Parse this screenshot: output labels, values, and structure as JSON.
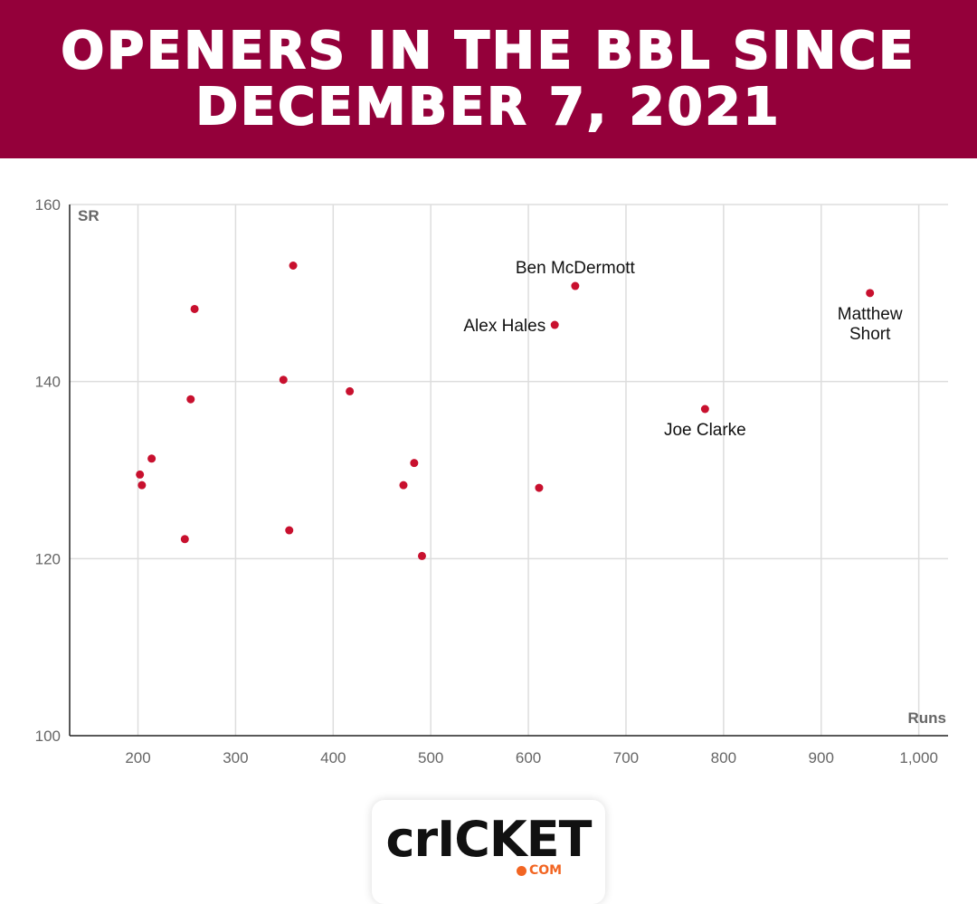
{
  "header": {
    "title_line1": "OPENERS IN THE BBL SINCE",
    "title_line2": "DECEMBER 7, 2021"
  },
  "colors": {
    "header_bg": "#94003a",
    "point": "#c8102e",
    "grid": "#dddddd",
    "axis": "#222222",
    "tick_label": "#666666"
  },
  "logo": {
    "text": "crICKET",
    "suffix": "COM"
  },
  "chart_data": {
    "type": "scatter",
    "xlabel": "Runs",
    "ylabel": "SR",
    "xlim": [
      130,
      1030
    ],
    "ylim": [
      100,
      160
    ],
    "xticks": [
      200,
      300,
      400,
      500,
      600,
      700,
      800,
      900,
      1000
    ],
    "xtick_labels": [
      "200",
      "300",
      "400",
      "500",
      "600",
      "700",
      "800",
      "900",
      "1,000"
    ],
    "yticks": [
      100,
      120,
      140,
      160
    ],
    "ytick_labels": [
      "100",
      "120",
      "140",
      "160"
    ],
    "grid": true,
    "points": [
      {
        "x": 202,
        "y": 129.5
      },
      {
        "x": 204,
        "y": 128.3
      },
      {
        "x": 214,
        "y": 131.3
      },
      {
        "x": 248,
        "y": 122.2
      },
      {
        "x": 254,
        "y": 138.0
      },
      {
        "x": 258,
        "y": 148.2
      },
      {
        "x": 349,
        "y": 140.2
      },
      {
        "x": 355,
        "y": 123.2
      },
      {
        "x": 359,
        "y": 153.1
      },
      {
        "x": 417,
        "y": 138.9
      },
      {
        "x": 472,
        "y": 128.3
      },
      {
        "x": 483,
        "y": 130.8
      },
      {
        "x": 491,
        "y": 120.3
      },
      {
        "x": 611,
        "y": 128.0
      },
      {
        "x": 627,
        "y": 146.4,
        "label": "Alex Hales",
        "label_pos": "left"
      },
      {
        "x": 648,
        "y": 150.8,
        "label": "Ben McDermott",
        "label_pos": "above"
      },
      {
        "x": 781,
        "y": 136.9,
        "label": "Joe Clarke",
        "label_pos": "below"
      },
      {
        "x": 950,
        "y": 150.0,
        "label": "Matthew Short",
        "label_lines": [
          "Matthew",
          "Short"
        ],
        "label_pos": "below"
      }
    ]
  }
}
